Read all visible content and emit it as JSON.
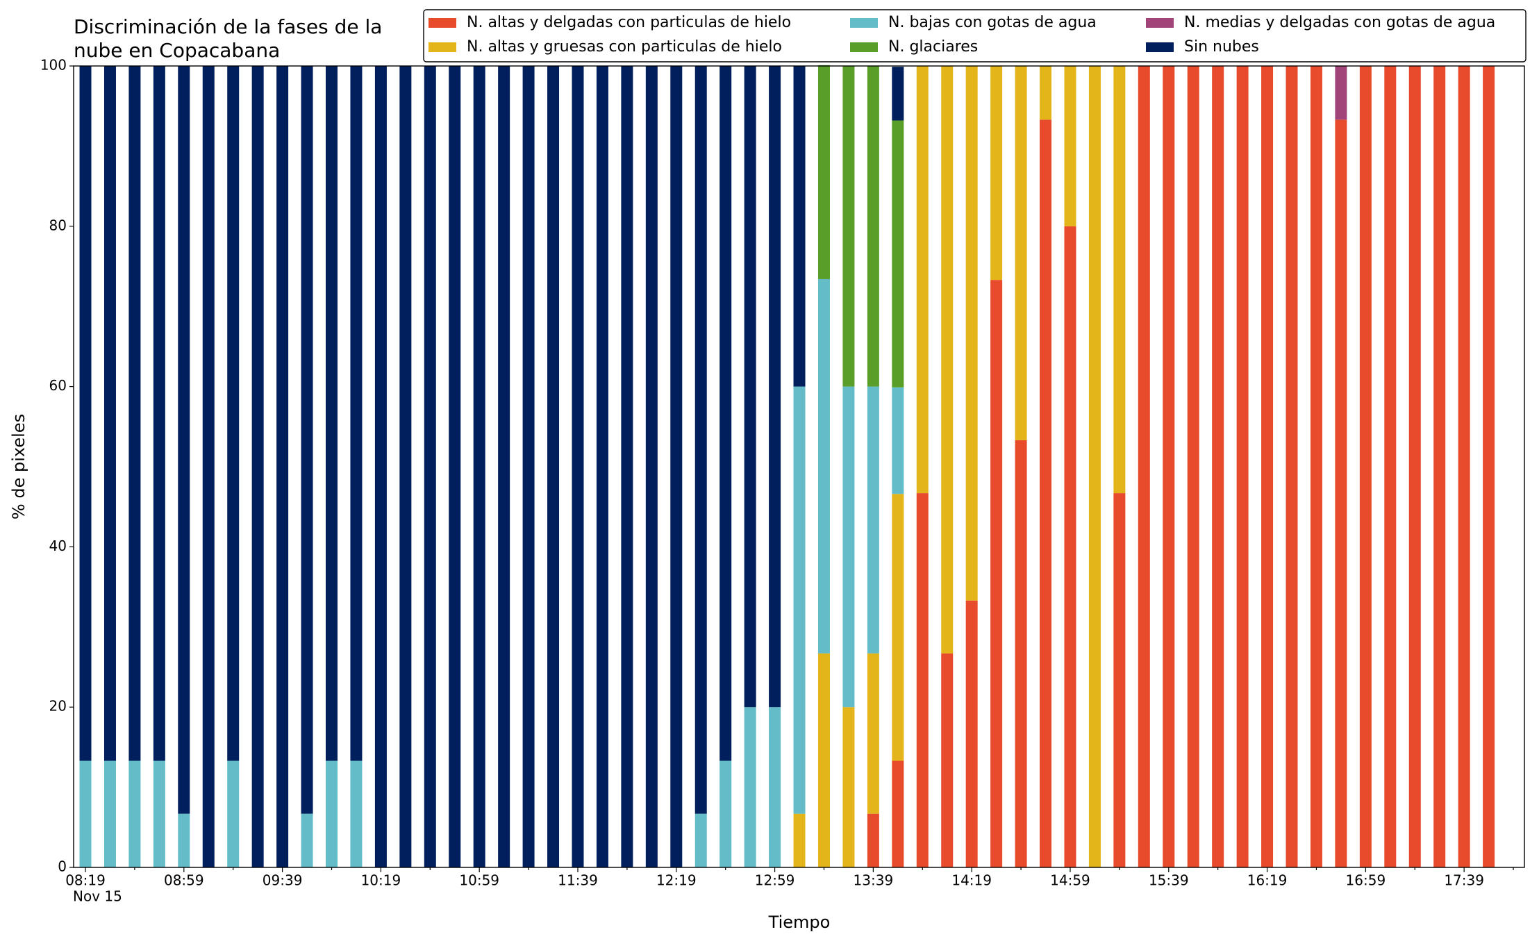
{
  "chart_data": {
    "type": "stacked_bar",
    "title": [
      "Discriminación de la fases de la",
      "nube en Copacabana"
    ],
    "xlabel": "Tiempo",
    "ylabel": "% de pixeles",
    "date_label": "Nov 15",
    "categories": [
      "08:19",
      null,
      null,
      null,
      "08:59",
      null,
      null,
      null,
      "09:39",
      null,
      null,
      null,
      "10:19",
      null,
      null,
      null,
      "10:59",
      null,
      null,
      null,
      "11:39",
      null,
      null,
      null,
      "12:19",
      null,
      null,
      null,
      "12:59",
      null,
      null,
      null,
      "13:39",
      null,
      null,
      null,
      "14:19",
      null,
      null,
      null,
      "14:59",
      null,
      null,
      null,
      "15:39",
      null,
      null,
      null,
      "16:19",
      null,
      null,
      null,
      "16:59",
      null,
      null,
      null,
      "17:39",
      null
    ],
    "series": [
      {
        "name": "N. altas y delgadas con particulas de hielo",
        "color": "#e84a2c",
        "values": [
          0,
          0,
          0,
          0,
          0,
          0,
          0,
          0,
          0,
          0,
          0,
          0,
          0,
          0,
          0,
          0,
          0,
          0,
          0,
          0,
          0,
          0,
          0,
          0,
          0,
          0,
          0,
          0,
          0,
          0,
          0,
          0,
          6.7,
          13.3,
          46.7,
          26.7,
          33.3,
          73.3,
          53.3,
          93.3,
          80,
          0,
          46.7,
          100,
          100,
          100,
          100,
          100,
          100,
          100,
          100,
          93.3,
          100,
          100,
          100,
          100,
          100,
          100
        ]
      },
      {
        "name": "N. altas y gruesas con particulas de hielo",
        "color": "#e3b51a",
        "values": [
          0,
          0,
          0,
          0,
          0,
          0,
          0,
          0,
          0,
          0,
          0,
          0,
          0,
          0,
          0,
          0,
          0,
          0,
          0,
          0,
          0,
          0,
          0,
          0,
          0,
          0,
          0,
          0,
          0,
          6.7,
          26.7,
          20,
          20,
          33.3,
          53.3,
          73.3,
          66.7,
          26.7,
          46.7,
          6.7,
          20,
          100,
          53.3,
          0,
          0,
          0,
          0,
          0,
          0,
          0,
          0,
          0,
          0,
          0,
          0,
          0,
          0,
          0
        ]
      },
      {
        "name": "N. bajas con gotas de agua",
        "color": "#64bcc8",
        "values": [
          13.3,
          13.3,
          13.3,
          13.3,
          6.7,
          0,
          13.3,
          0,
          0,
          6.7,
          13.3,
          13.3,
          0,
          0,
          0,
          0,
          0,
          0,
          0,
          0,
          0,
          0,
          0,
          0,
          0,
          6.7,
          13.3,
          20,
          20,
          53.3,
          46.7,
          40,
          33.3,
          13.3,
          0,
          0,
          0,
          0,
          0,
          0,
          0,
          0,
          0,
          0,
          0,
          0,
          0,
          0,
          0,
          0,
          0,
          0,
          0,
          0,
          0,
          0,
          0,
          0
        ]
      },
      {
        "name": "N. glaciares",
        "color": "#5a9e2a",
        "values": [
          0,
          0,
          0,
          0,
          0,
          0,
          0,
          0,
          0,
          0,
          0,
          0,
          0,
          0,
          0,
          0,
          0,
          0,
          0,
          0,
          0,
          0,
          0,
          0,
          0,
          0,
          0,
          0,
          0,
          0,
          26.7,
          40,
          40,
          33.3,
          0,
          0,
          0,
          0,
          0,
          0,
          0,
          0,
          0,
          0,
          0,
          0,
          0,
          0,
          0,
          0,
          0,
          0,
          0,
          0,
          0,
          0,
          0,
          0
        ]
      },
      {
        "name": "N. medias y delgadas con gotas de agua",
        "color": "#a0447a",
        "values": [
          0,
          0,
          0,
          0,
          0,
          0,
          0,
          0,
          0,
          0,
          0,
          0,
          0,
          0,
          0,
          0,
          0,
          0,
          0,
          0,
          0,
          0,
          0,
          0,
          0,
          0,
          0,
          0,
          0,
          0,
          0,
          0,
          0,
          0,
          0,
          0,
          0,
          0,
          0,
          0,
          0,
          0,
          0,
          0,
          0,
          0,
          0,
          0,
          0,
          0,
          0,
          6.7,
          0,
          0,
          0,
          0,
          0,
          0
        ]
      },
      {
        "name": "Sin nubes",
        "color": "#001f5c",
        "values": [
          86.7,
          86.7,
          86.7,
          86.7,
          93.3,
          100,
          86.7,
          100,
          100,
          93.3,
          86.7,
          86.7,
          100,
          100,
          100,
          100,
          100,
          100,
          100,
          100,
          100,
          100,
          100,
          100,
          100,
          93.3,
          86.7,
          80,
          80,
          40,
          0,
          0,
          0,
          6.7,
          0,
          0,
          0,
          0,
          0,
          0,
          0,
          0,
          0,
          0,
          0,
          0,
          0,
          0,
          0,
          0,
          0,
          0,
          0,
          0,
          0,
          0,
          0,
          0
        ]
      }
    ],
    "ylim": [
      0,
      100
    ],
    "yticks": [
      0,
      20,
      40,
      60,
      80,
      100
    ],
    "grid": false,
    "legend": "upper right"
  }
}
